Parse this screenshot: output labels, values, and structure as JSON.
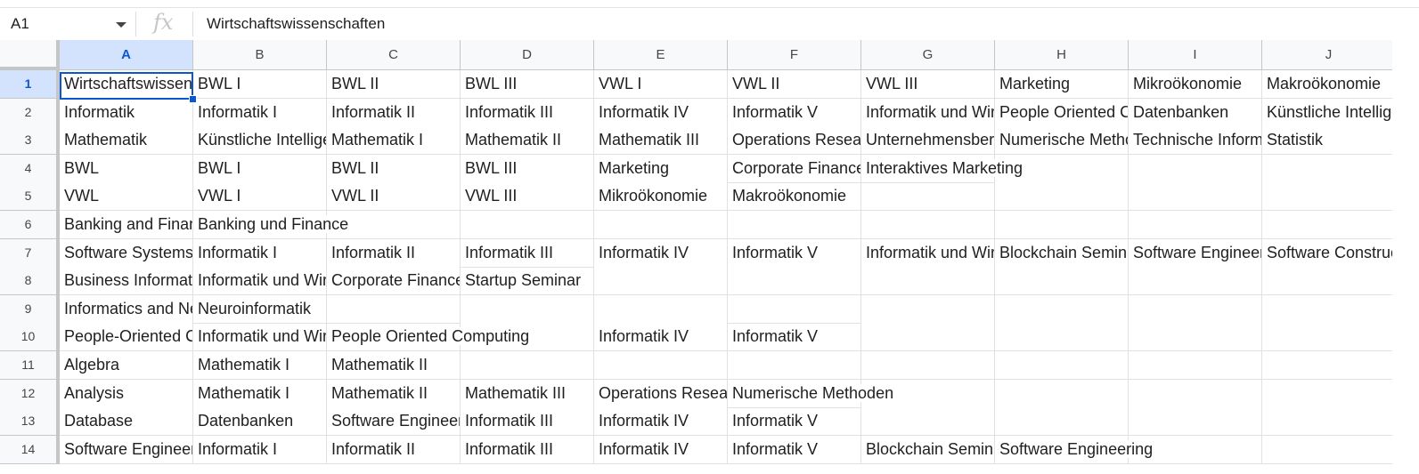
{
  "name_box": "A1",
  "fx_symbol": "fx",
  "formula_value": "Wirtschaftswissenschaften",
  "columns": [
    "A",
    "B",
    "C",
    "D",
    "E",
    "F",
    "G",
    "H",
    "I",
    "J"
  ],
  "rows": [
    "1",
    "2",
    "3",
    "4",
    "5",
    "6",
    "7",
    "8",
    "9",
    "10",
    "11",
    "12",
    "13",
    "14"
  ],
  "cells": [
    [
      "Wirtschaftswissenschaften",
      "BWL I",
      "BWL II",
      "BWL III",
      "VWL I",
      "VWL II",
      "VWL III",
      "Marketing",
      "Mikroökonomie",
      "Makroökonomie"
    ],
    [
      "Informatik",
      "Informatik I",
      "Informatik II",
      "Informatik III",
      "Informatik IV",
      "Informatik V",
      "Informatik und Wirtschaft",
      "People Oriented Computing",
      "Datenbanken",
      "Künstliche Intelligenz"
    ],
    [
      "Mathematik",
      "Künstliche Intelligenz",
      "Mathematik I",
      "Mathematik II",
      "Mathematik III",
      "Operations Research",
      "Unternehmensberatung",
      "Numerische Methoden",
      "Technische Informatik",
      "Statistik"
    ],
    [
      "BWL",
      "BWL I",
      "BWL II",
      "BWL III",
      "Marketing",
      "Corporate Finance",
      "Interaktives Marketing",
      "",
      "",
      ""
    ],
    [
      "VWL",
      "VWL I",
      "VWL II",
      "VWL III",
      "Mikroökonomie",
      "Makroökonomie",
      "",
      "",
      "",
      ""
    ],
    [
      "Banking and Finance",
      "Banking und Finance",
      "",
      "",
      "",
      "",
      "",
      "",
      "",
      ""
    ],
    [
      "Software Systems",
      "Informatik I",
      "Informatik II",
      "Informatik III",
      "Informatik IV",
      "Informatik V",
      "Informatik und Wirtschaft",
      "Blockchain Seminar",
      "Software Engineering",
      "Software Construction"
    ],
    [
      "Business Informatics",
      "Informatik und Wirtschaft",
      "Corporate Finance",
      "Startup Seminar",
      "",
      "",
      "",
      "",
      "",
      ""
    ],
    [
      "Informatics and Neuroscience",
      "Neuroinformatik",
      "",
      "",
      "",
      "",
      "",
      "",
      "",
      ""
    ],
    [
      "People-Oriented Computing",
      "Informatik und Wirtschaft",
      "People Oriented Computing",
      "",
      "Informatik IV",
      "Informatik V",
      "",
      "",
      "",
      ""
    ],
    [
      "Algebra",
      "Mathematik I",
      "Mathematik II",
      "",
      "",
      "",
      "",
      "",
      "",
      ""
    ],
    [
      "Analysis",
      "Mathematik I",
      "Mathematik II",
      "Mathematik III",
      "Operations Research",
      "Numerische Methoden",
      "",
      "",
      "",
      ""
    ],
    [
      "Database",
      "Datenbanken",
      "Software Engineering",
      "Informatik III",
      "Informatik IV",
      "Informatik V",
      "",
      "",
      "",
      ""
    ],
    [
      "Software Engineering",
      "Informatik I",
      "Informatik II",
      "Informatik III",
      "Informatik IV",
      "Informatik V",
      "Blockchain Seminar",
      "Software Engineering",
      "",
      ""
    ]
  ]
}
